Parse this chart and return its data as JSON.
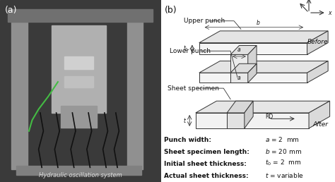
{
  "panel_a_label": "(a)",
  "panel_b_label": "(b)",
  "caption_a": "Hydraulic oscillation system",
  "labels_right": [
    "Upper punch",
    "Lower punch",
    "Sheet specimen"
  ],
  "before_label": "Before",
  "after_label": "After",
  "param_labels": [
    "Punch width:",
    "Sheet specimen length:",
    "Initial sheet thickness:",
    "Actual sheet thickness:"
  ],
  "param_val_texts": [
    "$a$ = 2  mm",
    "$b$ = 20 mm",
    "$t_0$ = 2  mm",
    "$t$ = variable"
  ],
  "bg_color": "#ffffff",
  "diagram_line_color": "#333333",
  "text_color": "#111111"
}
